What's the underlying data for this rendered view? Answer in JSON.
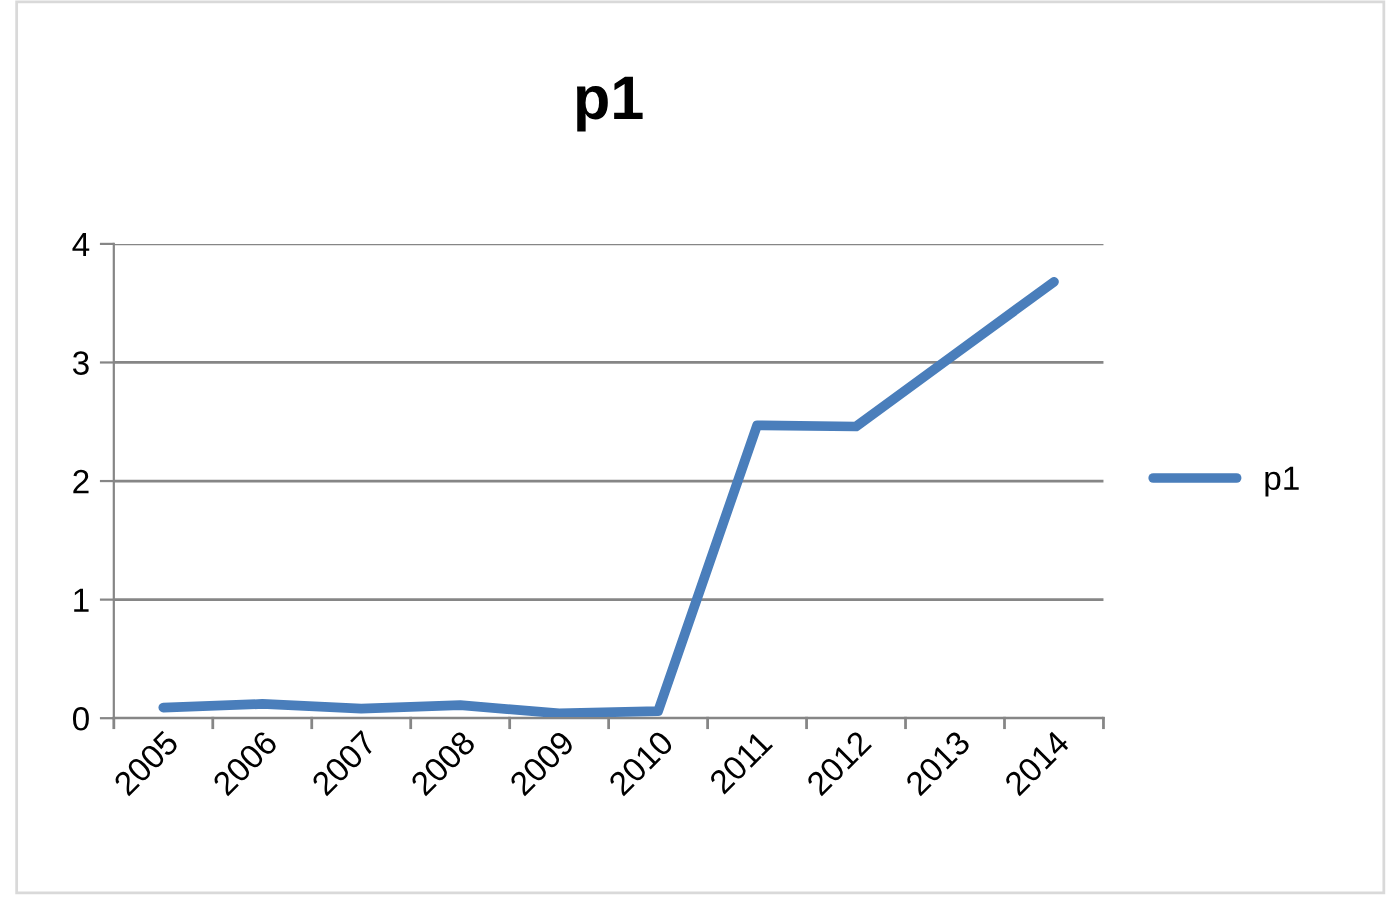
{
  "chart_data": {
    "type": "line",
    "title": "p1",
    "categories": [
      "2005",
      "2006",
      "2007",
      "2008",
      "2009",
      "2010",
      "2011",
      "2012",
      "2013",
      "2014"
    ],
    "series": [
      {
        "name": "p1",
        "color": "#4a7ebb",
        "values": [
          0.09,
          0.12,
          0.08,
          0.11,
          0.04,
          0.06,
          2.47,
          2.46,
          3.07,
          3.68
        ]
      }
    ],
    "ylim": [
      0,
      4
    ],
    "yticks": [
      0,
      1,
      2,
      3,
      4
    ],
    "grid": "y",
    "legend": "right",
    "marker": "none",
    "line_style": "solid"
  }
}
